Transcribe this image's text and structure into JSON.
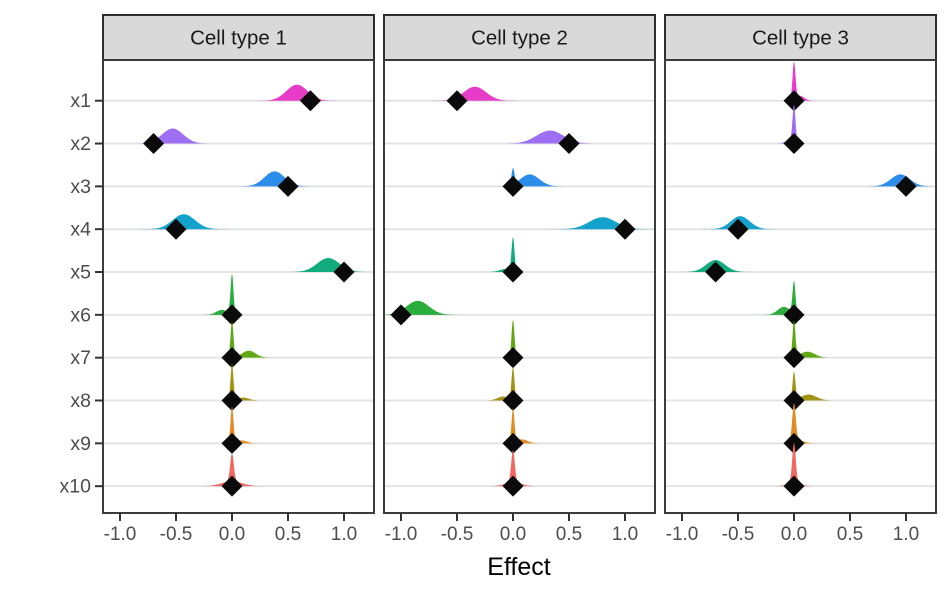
{
  "chart_data": {
    "type": "area",
    "subtype": "faceted-half-violin-ridgelines-with-diamond-point-estimates",
    "xlabel": "Effect",
    "facets": [
      "Cell type 1",
      "Cell type 2",
      "Cell type 3"
    ],
    "variables": [
      "x1",
      "x2",
      "x3",
      "x4",
      "x5",
      "x6",
      "x7",
      "x8",
      "x9",
      "x10"
    ],
    "x_ticks": [
      -1.0,
      -0.5,
      0.0,
      0.5,
      1.0
    ],
    "x_tick_labels": [
      "-1.0",
      "-0.5",
      "0.0",
      "0.5",
      "1.0"
    ],
    "xlim": [
      -1.15,
      1.27
    ],
    "grid": "horizontal-major-only",
    "legend": "none",
    "marker": "black-diamond",
    "colors_by_variable": {
      "x1": "#E63CC8",
      "x2": "#9E6FF2",
      "x3": "#2B8CEA",
      "x4": "#13A2CC",
      "x5": "#12AB7D",
      "x6": "#2BAD3E",
      "x7": "#61A715",
      "x8": "#A39419",
      "x9": "#E08C25",
      "x10": "#F26860"
    },
    "density_component_format": "[mode, sd, peak_height_px]",
    "panels": [
      {
        "facet": "Cell type 1",
        "rows": [
          {
            "variable": "x1",
            "estimate": 0.7,
            "density_components": [
              [
                0.58,
                0.095,
                16
              ]
            ]
          },
          {
            "variable": "x2",
            "estimate": -0.7,
            "density_components": [
              [
                -0.53,
                0.095,
                15
              ]
            ]
          },
          {
            "variable": "x3",
            "estimate": 0.5,
            "density_components": [
              [
                0.38,
                0.09,
                15
              ]
            ]
          },
          {
            "variable": "x4",
            "estimate": -0.5,
            "density_components": [
              [
                -0.43,
                0.1,
                15
              ]
            ]
          },
          {
            "variable": "x5",
            "estimate": 1.0,
            "density_components": [
              [
                0.86,
                0.1,
                14
              ]
            ]
          },
          {
            "variable": "x6",
            "estimate": 0.0,
            "density_components": [
              [
                0,
                0.013,
                40
              ],
              [
                -0.09,
                0.05,
                5
              ]
            ]
          },
          {
            "variable": "x7",
            "estimate": 0.0,
            "density_components": [
              [
                0,
                0.013,
                36
              ],
              [
                0.15,
                0.06,
                7
              ]
            ]
          },
          {
            "variable": "x8",
            "estimate": 0.0,
            "density_components": [
              [
                0,
                0.013,
                36
              ],
              [
                0.1,
                0.05,
                3
              ]
            ]
          },
          {
            "variable": "x9",
            "estimate": 0.0,
            "density_components": [
              [
                0,
                0.013,
                36
              ],
              [
                0.08,
                0.05,
                3
              ]
            ]
          },
          {
            "variable": "x10",
            "estimate": 0.0,
            "density_components": [
              [
                0,
                0.016,
                28
              ],
              [
                0,
                0.09,
                5
              ]
            ]
          }
        ]
      },
      {
        "facet": "Cell type 2",
        "rows": [
          {
            "variable": "x1",
            "estimate": -0.5,
            "density_components": [
              [
                -0.34,
                0.1,
                14
              ]
            ]
          },
          {
            "variable": "x2",
            "estimate": 0.5,
            "density_components": [
              [
                0.33,
                0.12,
                13
              ]
            ]
          },
          {
            "variable": "x3",
            "estimate": 0.0,
            "density_components": [
              [
                0,
                0.013,
                16
              ],
              [
                0.15,
                0.085,
                12
              ]
            ]
          },
          {
            "variable": "x4",
            "estimate": 1.0,
            "density_components": [
              [
                0.8,
                0.12,
                12
              ]
            ]
          },
          {
            "variable": "x5",
            "estimate": 0.0,
            "density_components": [
              [
                0,
                0.013,
                34
              ],
              [
                -0.07,
                0.05,
                3
              ]
            ]
          },
          {
            "variable": "x6",
            "estimate": -1.0,
            "density_components": [
              [
                -0.85,
                0.1,
                14
              ]
            ]
          },
          {
            "variable": "x7",
            "estimate": 0.0,
            "density_components": [
              [
                0,
                0.013,
                38
              ]
            ]
          },
          {
            "variable": "x8",
            "estimate": 0.0,
            "density_components": [
              [
                0,
                0.013,
                33
              ],
              [
                -0.09,
                0.05,
                4
              ]
            ]
          },
          {
            "variable": "x9",
            "estimate": 0.0,
            "density_components": [
              [
                0,
                0.013,
                34
              ],
              [
                0.08,
                0.05,
                4
              ]
            ]
          },
          {
            "variable": "x10",
            "estimate": 0.0,
            "density_components": [
              [
                0,
                0.016,
                32
              ],
              [
                0,
                0.07,
                4
              ]
            ]
          }
        ]
      },
      {
        "facet": "Cell type 3",
        "rows": [
          {
            "variable": "x1",
            "estimate": 0.0,
            "density_components": [
              [
                0,
                0.013,
                37
              ],
              [
                0.05,
                0.04,
                5
              ]
            ]
          },
          {
            "variable": "x2",
            "estimate": 0.0,
            "density_components": [
              [
                0,
                0.013,
                36
              ],
              [
                -0.03,
                0.04,
                4
              ]
            ]
          },
          {
            "variable": "x3",
            "estimate": 1.0,
            "density_components": [
              [
                0.95,
                0.085,
                12
              ]
            ]
          },
          {
            "variable": "x4",
            "estimate": -0.5,
            "density_components": [
              [
                -0.48,
                0.085,
                13
              ]
            ]
          },
          {
            "variable": "x5",
            "estimate": -0.7,
            "density_components": [
              [
                -0.7,
                0.085,
                12
              ]
            ]
          },
          {
            "variable": "x6",
            "estimate": 0.0,
            "density_components": [
              [
                0,
                0.013,
                32
              ],
              [
                -0.09,
                0.055,
                8
              ]
            ]
          },
          {
            "variable": "x7",
            "estimate": 0.0,
            "density_components": [
              [
                0,
                0.013,
                36
              ],
              [
                0.12,
                0.065,
                6
              ]
            ]
          },
          {
            "variable": "x8",
            "estimate": 0.0,
            "density_components": [
              [
                0,
                0.013,
                28
              ],
              [
                0.13,
                0.07,
                6
              ]
            ]
          },
          {
            "variable": "x9",
            "estimate": 0.0,
            "density_components": [
              [
                0,
                0.016,
                38
              ],
              [
                0.04,
                0.05,
                3
              ]
            ]
          },
          {
            "variable": "x10",
            "estimate": 0.0,
            "density_components": [
              [
                0,
                0.016,
                40
              ],
              [
                0,
                0.06,
                3
              ]
            ]
          }
        ]
      }
    ],
    "style": {
      "strip_fill": "#D9D9D9",
      "strip_border": "#2E2E2E",
      "strip_text": "#1A1A1A",
      "panel_border": "#3C3C3C",
      "panel_background": "#FFFFFF",
      "gridline": "#E4E4E4",
      "tick": "#333333",
      "axis_text": "#4D4D4D",
      "axis_title": "#000000",
      "marker_fill": "#0A0A0A"
    }
  }
}
